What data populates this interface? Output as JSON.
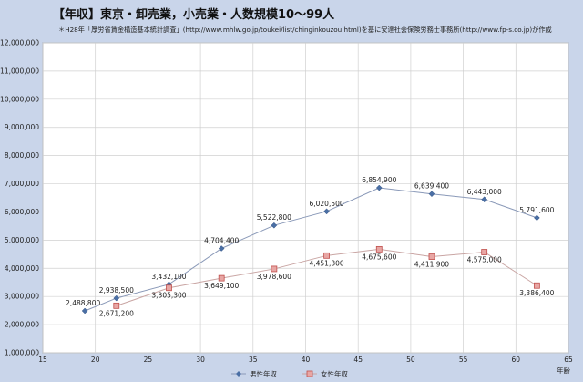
{
  "title": "【年収】東京・卸売業，小売業・人数規模10～99人",
  "subtitle": "＊H28年「厚労省賃金構造基本統計調査」(http://www.mhlw.go.jp/toukei/list/chinginkouzou.html)を基に安達社会保険労務士事務所(http://www.fp-s.co.jp)が作成",
  "chart_data": {
    "type": "line",
    "xlabel": "年齢",
    "ylabel": "",
    "xlim": [
      15,
      65
    ],
    "ylim": [
      1000000,
      12000000
    ],
    "xticks": [
      "15",
      "20",
      "25",
      "30",
      "35",
      "40",
      "45",
      "50",
      "55",
      "60",
      "65"
    ],
    "yticks": [
      "1,000,000",
      "2,000,000",
      "3,000,000",
      "4,000,000",
      "5,000,000",
      "6,000,000",
      "7,000,000",
      "8,000,000",
      "9,000,000",
      "10,000,000",
      "11,000,000",
      "12,000,000"
    ],
    "grid": true,
    "legend_position": "bottom",
    "series": [
      {
        "name": "男性年収",
        "color": "#4a6fa5",
        "marker": "diamond",
        "x": [
          19,
          22,
          27,
          32,
          37,
          42,
          47,
          52,
          57,
          62
        ],
        "y": [
          2488800,
          2938500,
          3432100,
          4704400,
          5522800,
          6020500,
          6854900,
          6639400,
          6443000,
          5791600
        ],
        "labels": [
          "2,488,800",
          "2,938,500",
          "3,432,100",
          "4,704,400",
          "5,522,800",
          "6,020,500",
          "6,854,900",
          "6,639,400",
          "6,443,000",
          "5,791,600"
        ]
      },
      {
        "name": "女性年収",
        "color": "#c0504d",
        "marker": "square",
        "x": [
          22,
          27,
          32,
          37,
          42,
          47,
          52,
          57,
          62
        ],
        "y": [
          2671200,
          3305300,
          3649100,
          3978600,
          4451300,
          4675600,
          4411900,
          4575000,
          3386400
        ],
        "labels": [
          "2,671,200",
          "3,305,300",
          "3,649,100",
          "3,978,600",
          "4,451,300",
          "4,675,600",
          "4,411,900",
          "4,575,000",
          "3,386,400"
        ]
      }
    ]
  }
}
